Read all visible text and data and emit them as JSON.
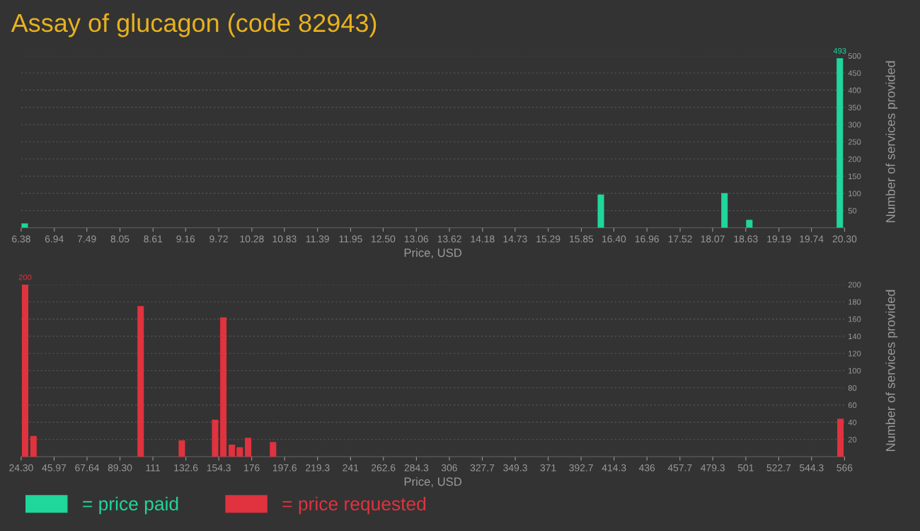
{
  "chart_data": [
    {
      "type": "bar",
      "title": "Assay of glucagon (code 82943)",
      "xlabel": "Price, USD",
      "ylabel": "Number of services provided",
      "legend": "bottom",
      "grid": "y",
      "x": [
        6.44,
        16.18,
        18.27,
        18.69,
        20.22
      ],
      "series": [
        {
          "name": "= price paid",
          "color": "#1fd69b",
          "values": [
            13,
            97,
            101,
            23,
            493
          ],
          "value_labels": [
            null,
            null,
            null,
            null,
            "493"
          ]
        }
      ],
      "xlim": [
        6.38,
        20.3
      ],
      "xticks": [
        6.38,
        6.94,
        7.49,
        8.05,
        8.61,
        9.16,
        9.72,
        10.28,
        10.83,
        11.39,
        11.95,
        {
          "value": 12.5,
          "label": "12.50"
        },
        13.06,
        13.62,
        14.18,
        14.73,
        15.29,
        15.85,
        {
          "value": 16.4,
          "label": "16.40"
        },
        16.96,
        17.52,
        18.07,
        18.63,
        19.19,
        19.74,
        {
          "value": 20.3,
          "label": "20.30"
        }
      ],
      "ylim": [
        0,
        500
      ],
      "yticks": [
        50,
        100,
        150,
        200,
        250,
        300,
        350,
        400,
        450,
        500
      ]
    },
    {
      "type": "bar",
      "xlabel": "Price, USD",
      "ylabel": "Number of services provided",
      "legend": "bottom",
      "grid": "y",
      "x": [
        26.9,
        32.4,
        102.9,
        130.0,
        151.9,
        157.3,
        162.9,
        168.1,
        173.6,
        190.0,
        563.3
      ],
      "series": [
        {
          "name": "= price requested",
          "color": "#e0323f",
          "values": [
            200,
            24,
            175,
            19,
            43,
            162,
            14,
            11,
            22,
            17,
            44
          ],
          "value_labels": [
            "200",
            null,
            null,
            null,
            null,
            null,
            null,
            null,
            null,
            null,
            null
          ]
        }
      ],
      "xlim": [
        24.3,
        566
      ],
      "xticks": [
        {
          "value": 24.3,
          "label": "24.30"
        },
        45.97,
        67.64,
        {
          "value": 89.3,
          "label": "89.30"
        },
        {
          "value": 110.98,
          "label": "111"
        },
        {
          "value": 132.65,
          "label": "132.6"
        },
        {
          "value": 154.32,
          "label": "154.3"
        },
        {
          "value": 175.98,
          "label": "176"
        },
        {
          "value": 197.65,
          "label": "197.6"
        },
        {
          "value": 219.32,
          "label": "219.3"
        },
        {
          "value": 240.99,
          "label": "241"
        },
        {
          "value": 262.6,
          "label": "262.6"
        },
        {
          "value": 284.33,
          "label": "284.3"
        },
        {
          "value": 306.0,
          "label": "306"
        },
        {
          "value": 327.67,
          "label": "327.7"
        },
        {
          "value": 349.34,
          "label": "349.3"
        },
        {
          "value": 371.0,
          "label": "371"
        },
        {
          "value": 392.68,
          "label": "392.7"
        },
        {
          "value": 414.35,
          "label": "414.3"
        },
        {
          "value": 436.02,
          "label": "436"
        },
        {
          "value": 457.69,
          "label": "457.7"
        },
        {
          "value": 479.3,
          "label": "479.3"
        },
        {
          "value": 501.03,
          "label": "501"
        },
        {
          "value": 522.7,
          "label": "522.7"
        },
        {
          "value": 544.3,
          "label": "544.3"
        },
        {
          "value": 566,
          "label": "566"
        }
      ],
      "ylim": [
        0,
        200
      ],
      "yticks": [
        20,
        40,
        60,
        80,
        100,
        120,
        140,
        160,
        180,
        200
      ]
    }
  ]
}
